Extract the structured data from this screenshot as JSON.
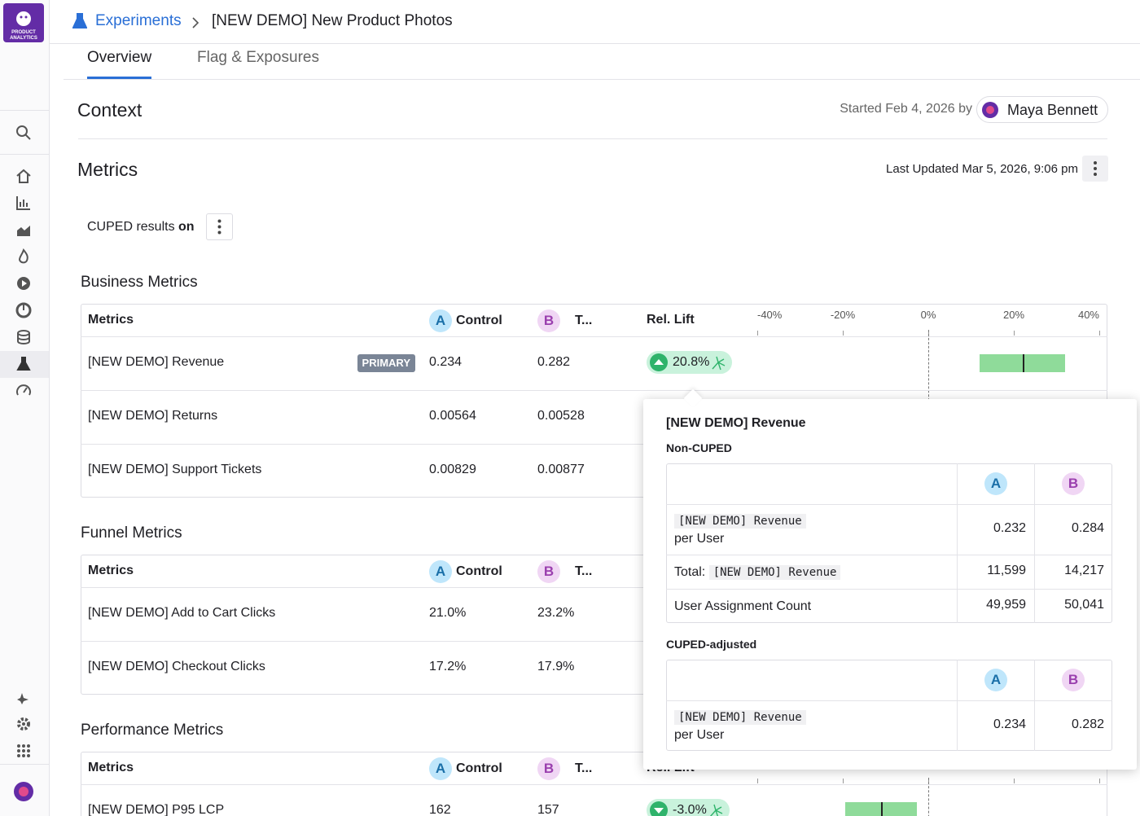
{
  "logo": {
    "line1": "PRODUCT",
    "line2": "ANALYTICS"
  },
  "breadcrumb": {
    "parent": "Experiments",
    "current": "[NEW DEMO] New Product Photos"
  },
  "tabs": [
    "Overview",
    "Flag & Exposures"
  ],
  "context": {
    "title": "Context",
    "started": "Started Feb 4, 2026 by",
    "owner": "Maya Bennett"
  },
  "metrics": {
    "title": "Metrics",
    "last_updated": "Last Updated Mar 5, 2026, 9:06 pm",
    "cuped_label": "CUPED results",
    "cuped_state": "on"
  },
  "columns": {
    "metrics": "Metrics",
    "a": "A",
    "control": "Control",
    "b": "B",
    "treatment": "T...",
    "lift": "Rel. Lift",
    "xlim": [
      -40,
      40
    ],
    "axis": [
      {
        "value": -40,
        "label": "-40%"
      },
      {
        "value": -20,
        "label": "-20%"
      },
      {
        "value": 0,
        "label": "0%"
      },
      {
        "value": 20,
        "label": "20%"
      },
      {
        "value": 40,
        "label": "40%"
      }
    ]
  },
  "sections": [
    {
      "title": "Business Metrics",
      "rows": [
        {
          "name": "[NEW DEMO] Revenue",
          "badge": "PRIMARY",
          "a": "0.234",
          "b": "0.282",
          "lift": "20.8%",
          "ci": [
            12,
            32
          ]
        },
        {
          "name": "[NEW DEMO] Returns",
          "a": "0.00564",
          "b": "0.00528"
        },
        {
          "name": "[NEW DEMO] Support Tickets",
          "a": "0.00829",
          "b": "0.00877"
        }
      ]
    },
    {
      "title": "Funnel Metrics",
      "rows": [
        {
          "name": "[NEW DEMO] Add to Cart Clicks",
          "a": "21.0%",
          "b": "23.2%"
        },
        {
          "name": "[NEW DEMO] Checkout Clicks",
          "a": "17.2%",
          "b": "17.9%"
        }
      ]
    },
    {
      "title": "Performance Metrics",
      "rows": [
        {
          "name": "[NEW DEMO] P95 LCP",
          "a": "162",
          "b": "157",
          "lift": "-3.0%",
          "ci": [
            -19.4,
            -2.7
          ]
        }
      ]
    }
  ],
  "popover": {
    "title": "[NEW DEMO] Revenue",
    "tables": [
      {
        "label": "Non-CUPED",
        "a": "A",
        "b": "B",
        "rows": [
          {
            "code": "[NEW DEMO] Revenue",
            "suffix": "per User",
            "a": "0.232",
            "b": "0.284"
          },
          {
            "prefix": "Total:",
            "code": "[NEW DEMO] Revenue",
            "a": "11,599",
            "b": "14,217"
          },
          {
            "text": "User Assignment Count",
            "a": "49,959",
            "b": "50,041"
          }
        ]
      },
      {
        "label": "CUPED-adjusted",
        "a": "A",
        "b": "B",
        "rows": [
          {
            "code": "[NEW DEMO] Revenue",
            "suffix": "per User",
            "a": "0.234",
            "b": "0.282"
          }
        ]
      }
    ]
  }
}
